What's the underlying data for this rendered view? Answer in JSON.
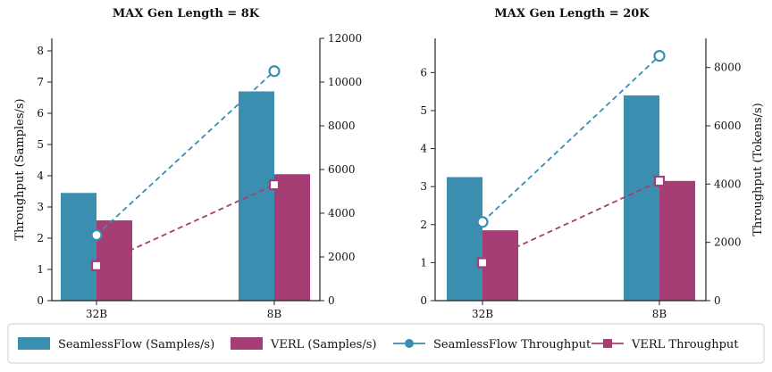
{
  "colors": {
    "seamless": "#3a8eaf",
    "verl": "#a63d74",
    "seamless_line": "#3a8eaf",
    "verl_line": "#a63d74",
    "axis": "#222222"
  },
  "legend": [
    {
      "label": "SeamlessFlow (Samples/s)",
      "kind": "bar",
      "series": "seamless"
    },
    {
      "label": "VERL (Samples/s)",
      "kind": "bar",
      "series": "verl"
    },
    {
      "label": "SeamlessFlow Throughput",
      "kind": "line",
      "series": "seamless",
      "marker": "circle"
    },
    {
      "label": "VERL Throughput",
      "kind": "line",
      "series": "verl",
      "marker": "square"
    }
  ],
  "chart_data": [
    {
      "type": "bar",
      "title": "MAX Gen Length = 8K",
      "categories": [
        "32B",
        "8B"
      ],
      "ylabel": "Throughput (Samples/s)",
      "ylabel2": "",
      "ylim": [
        0,
        8.4
      ],
      "yticks": [
        0,
        1,
        2,
        3,
        4,
        5,
        6,
        7,
        8
      ],
      "y2lim": [
        0,
        12000
      ],
      "y2ticks": [
        0,
        2000,
        4000,
        6000,
        8000,
        10000,
        12000
      ],
      "bar_series": [
        {
          "name": "SeamlessFlow (Samples/s)",
          "key": "seamless",
          "values": [
            3.45,
            6.7
          ]
        },
        {
          "name": "VERL (Samples/s)",
          "key": "verl",
          "values": [
            2.57,
            4.05
          ]
        }
      ],
      "line_series": [
        {
          "name": "SeamlessFlow Throughput",
          "key": "seamless",
          "marker": "circle",
          "values": [
            3000,
            10500
          ]
        },
        {
          "name": "VERL Throughput",
          "key": "verl",
          "marker": "square",
          "values": [
            1600,
            5300
          ]
        }
      ]
    },
    {
      "type": "bar",
      "title": "MAX Gen Length = 20K",
      "categories": [
        "32B",
        "8B"
      ],
      "ylabel": "",
      "ylabel2": "Throughput (Tokens/s)",
      "ylim": [
        0,
        6.9
      ],
      "yticks": [
        0,
        1,
        2,
        3,
        4,
        5,
        6
      ],
      "y2lim": [
        0,
        9000
      ],
      "y2ticks": [
        0,
        2000,
        4000,
        6000,
        8000
      ],
      "bar_series": [
        {
          "name": "SeamlessFlow (Samples/s)",
          "key": "seamless",
          "values": [
            3.25,
            5.4
          ]
        },
        {
          "name": "VERL (Samples/s)",
          "key": "verl",
          "values": [
            1.85,
            3.15
          ]
        }
      ],
      "line_series": [
        {
          "name": "SeamlessFlow Throughput",
          "key": "seamless",
          "marker": "circle",
          "values": [
            2700,
            8400
          ]
        },
        {
          "name": "VERL Throughput",
          "key": "verl",
          "marker": "square",
          "values": [
            1300,
            4100
          ]
        }
      ]
    }
  ]
}
